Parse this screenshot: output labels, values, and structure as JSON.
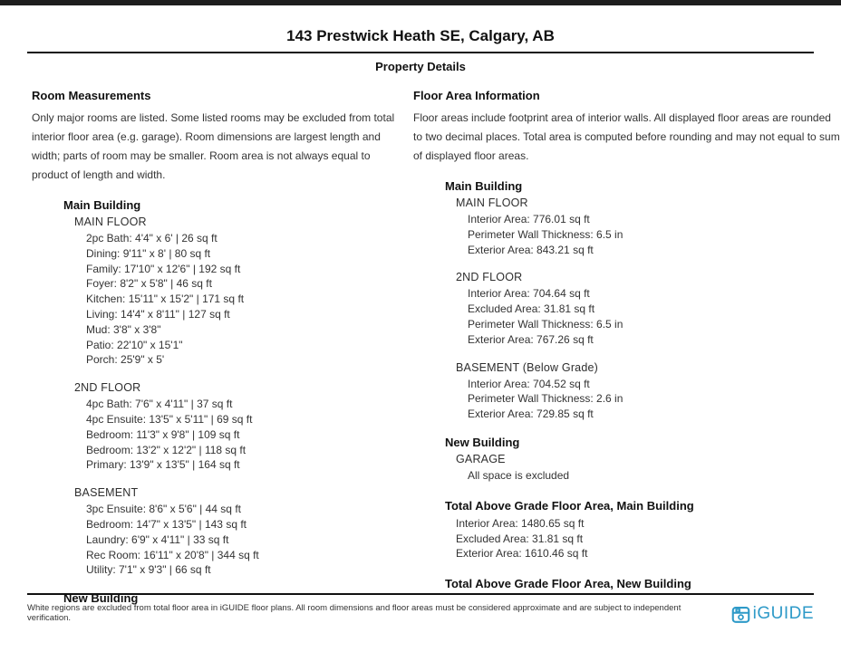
{
  "header": {
    "title": "143 Prestwick Heath SE, Calgary, AB",
    "subtitle": "Property Details"
  },
  "room_measurements": {
    "heading": "Room Measurements",
    "description": "Only major rooms are listed. Some listed rooms may be excluded from total interior floor area (e.g. garage). Room dimensions are largest length and width; parts of room may be smaller. Room area is not always equal to product of length and width.",
    "buildings": [
      {
        "name": "Main Building",
        "floors": [
          {
            "name": "MAIN FLOOR",
            "rooms": [
              "2pc Bath: 4'4\" x 6' | 26 sq ft",
              "Dining: 9'11\" x 8' | 80 sq ft",
              "Family: 17'10\" x 12'6\" | 192 sq ft",
              "Foyer: 8'2\" x 5'8\" | 46 sq ft",
              "Kitchen: 15'11\" x 15'2\" | 171 sq ft",
              "Living: 14'4\" x 8'11\" | 127 sq ft",
              "Mud: 3'8\" x 3'8\"",
              "Patio: 22'10\" x 15'1\"",
              "Porch: 25'9\" x 5'"
            ]
          },
          {
            "name": "2ND FLOOR",
            "rooms": [
              "4pc Bath: 7'6\" x 4'11\" | 37 sq ft",
              "4pc Ensuite: 13'5\" x 5'11\" | 69 sq ft",
              "Bedroom: 11'3\" x 9'8\" | 109 sq ft",
              "Bedroom: 13'2\" x 12'2\" | 118 sq ft",
              "Primary: 13'9\" x 13'5\" | 164 sq ft"
            ]
          },
          {
            "name": "BASEMENT",
            "rooms": [
              "3pc Ensuite: 8'6\" x 5'6\" | 44 sq ft",
              "Bedroom: 14'7\" x 13'5\" | 143 sq ft",
              "Laundry: 6'9\" x 4'11\" | 33 sq ft",
              "Rec Room: 16'11\" x 20'8\" | 344 sq ft",
              "Utility: 7'1\" x 9'3\" | 66 sq ft"
            ]
          }
        ]
      },
      {
        "name": "New Building",
        "floors": []
      }
    ]
  },
  "floor_area_information": {
    "heading": "Floor Area Information",
    "description": "Floor areas include footprint area of interior walls. All displayed floor areas are rounded to two decimal places. Total area is computed before rounding and may not equal to sum of displayed floor areas.",
    "buildings": [
      {
        "name": "Main Building",
        "floors": [
          {
            "name": "MAIN FLOOR",
            "stats": [
              "Interior Area: 776.01 sq ft",
              "Perimeter Wall Thickness: 6.5 in",
              "Exterior Area: 843.21 sq ft"
            ]
          },
          {
            "name": "2ND FLOOR",
            "stats": [
              "Interior Area: 704.64 sq ft",
              "Excluded Area: 31.81 sq ft",
              "Perimeter Wall Thickness: 6.5 in",
              "Exterior Area: 767.26 sq ft"
            ]
          },
          {
            "name": "BASEMENT (Below Grade)",
            "stats": [
              "Interior Area: 704.52 sq ft",
              "Perimeter Wall Thickness: 2.6 in",
              "Exterior Area: 729.85 sq ft"
            ]
          }
        ]
      },
      {
        "name": "New Building",
        "floors": [
          {
            "name": "GARAGE",
            "stats": [
              "All space is excluded"
            ]
          }
        ]
      }
    ],
    "totals": [
      {
        "name": "Total Above Grade Floor Area, Main Building",
        "stats": [
          "Interior Area: 1480.65 sq ft",
          "Excluded Area: 31.81 sq ft",
          "Exterior Area: 1610.46 sq ft"
        ]
      },
      {
        "name": "Total Above Grade Floor Area, New Building",
        "stats": []
      }
    ]
  },
  "footer": {
    "disclaimer": "White regions are excluded from total floor area in iGUIDE floor plans. All room dimensions and floor areas must be considered approximate and are subject to independent verification.",
    "logo_text": "iGUIDE",
    "logo_color": "#2E9AC8"
  }
}
